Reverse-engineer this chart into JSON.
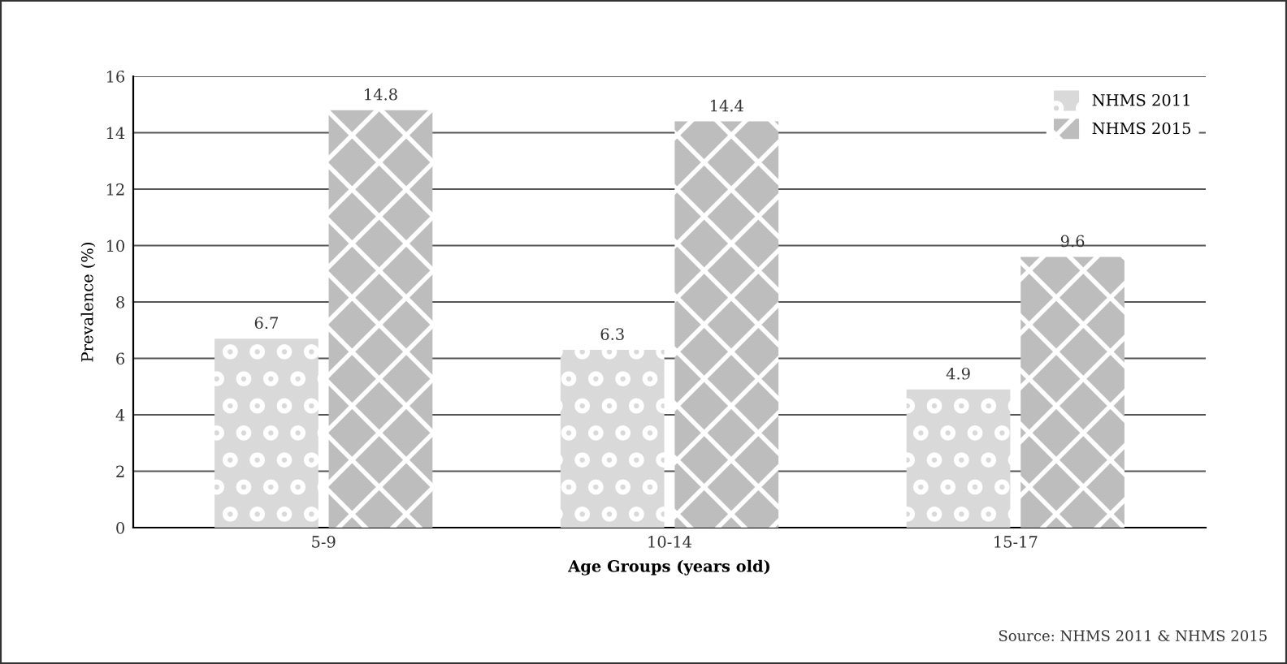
{
  "chart_data": {
    "type": "bar",
    "xlabel": "Age Groups (years old)",
    "ylabel": "Prevalence (%)",
    "categories": [
      "5-9",
      "10-14",
      "15-17"
    ],
    "series": [
      {
        "name": "NHMS 2011",
        "color": "#d9d9d9",
        "values": [
          6.7,
          6.3,
          4.9
        ]
      },
      {
        "name": "NHMS 2015",
        "color": "#bdbdbd",
        "values": [
          14.8,
          14.4,
          9.6
        ]
      }
    ],
    "ylim": [
      0,
      16
    ],
    "yticks": [
      0,
      2,
      4,
      6,
      8,
      10,
      12,
      14,
      16
    ],
    "grid": "y",
    "legend": "top right",
    "data_labels": true,
    "annotations": [
      "Source: NHMS 2011 & NHMS 2015"
    ]
  }
}
